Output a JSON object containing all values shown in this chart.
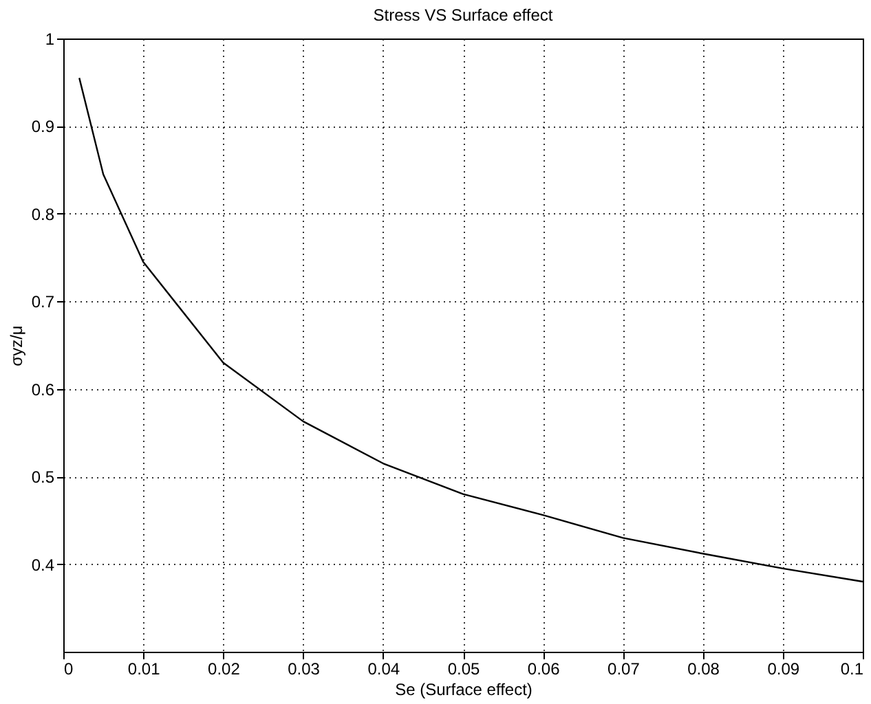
{
  "chart_data": {
    "type": "line",
    "title": "Stress VS Surface effect",
    "xlabel": "Se (Surface effect)",
    "ylabel": "σyz/μ",
    "x": [
      0.002,
      0.005,
      0.01,
      0.02,
      0.03,
      0.04,
      0.05,
      0.06,
      0.07,
      0.08,
      0.09,
      0.1
    ],
    "series": [
      {
        "color": "#000000",
        "values": [
          0.955,
          0.845,
          0.745,
          0.63,
          0.563,
          0.515,
          0.48,
          0.456,
          0.43,
          0.412,
          0.395,
          0.38
        ]
      }
    ],
    "xlim": [
      0,
      0.1
    ],
    "xticks": [
      0,
      0.01,
      0.02,
      0.03,
      0.04,
      0.05,
      0.06,
      0.07,
      0.08,
      0.09,
      0.1
    ],
    "ylim": [
      0.3,
      1
    ],
    "yticks": [
      0.4,
      0.5,
      0.6,
      0.7,
      0.8,
      0.9,
      1
    ],
    "grid": true,
    "line_style": "solid"
  }
}
